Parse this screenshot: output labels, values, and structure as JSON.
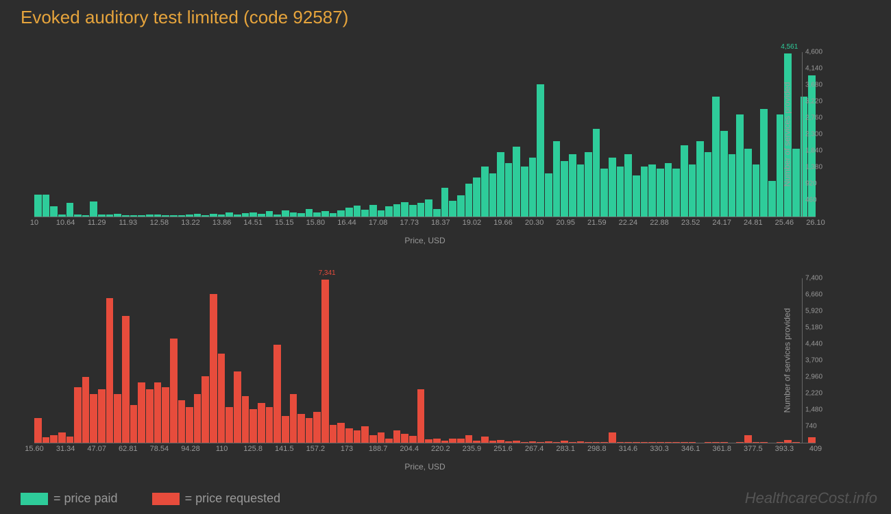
{
  "title": "Evoked auditory test limited (code 92587)",
  "watermark": "HealthcareCost.info",
  "chart1": {
    "type": "bar",
    "color": "#2ecc9a",
    "peak_label": "4,561",
    "peak_color": "#2ecc9a",
    "x_label": "Price, USD",
    "y_label": "Number of services provided",
    "x_ticks": [
      "10",
      "10.64",
      "11.29",
      "11.93",
      "12.58",
      "13.22",
      "13.86",
      "14.51",
      "15.15",
      "15.80",
      "16.44",
      "17.08",
      "17.73",
      "18.37",
      "19.02",
      "19.66",
      "20.30",
      "20.95",
      "21.59",
      "22.24",
      "22.88",
      "23.52",
      "24.17",
      "24.81",
      "25.46",
      "26.10"
    ],
    "y_ticks": [
      "460",
      "920",
      "1,380",
      "1,840",
      "2,300",
      "2,760",
      "3,220",
      "3,680",
      "4,140",
      "4,600"
    ],
    "y_max": 4600,
    "values": [
      620,
      620,
      280,
      50,
      380,
      60,
      40,
      420,
      50,
      50,
      70,
      30,
      40,
      30,
      50,
      60,
      30,
      40,
      30,
      60,
      70,
      40,
      80,
      50,
      120,
      60,
      100,
      120,
      80,
      150,
      60,
      180,
      120,
      90,
      220,
      120,
      150,
      100,
      180,
      250,
      300,
      200,
      320,
      180,
      280,
      340,
      400,
      320,
      380,
      480,
      220,
      800,
      450,
      600,
      920,
      1100,
      1400,
      1200,
      1800,
      1500,
      1950,
      1400,
      1650,
      3700,
      1200,
      2100,
      1550,
      1750,
      1450,
      1800,
      2450,
      1350,
      1650,
      1400,
      1750,
      1150,
      1400,
      1450,
      1350,
      1500,
      1350,
      2000,
      1450,
      2100,
      1800,
      3350,
      2400,
      1750,
      2850,
      1900,
      1450,
      3000,
      1000,
      2850,
      4561,
      1900,
      3350,
      3950
    ]
  },
  "chart2": {
    "type": "bar",
    "color": "#e74c3c",
    "peak_label": "7,341",
    "peak_color": "#e74c3c",
    "x_label": "Price, USD",
    "y_label": "Number of services provided",
    "x_ticks": [
      "15.60",
      "31.34",
      "47.07",
      "62.81",
      "78.54",
      "94.28",
      "110",
      "125.8",
      "141.5",
      "157.2",
      "173",
      "188.7",
      "204.4",
      "220.2",
      "235.9",
      "251.6",
      "267.4",
      "283.1",
      "298.8",
      "314.6",
      "330.3",
      "346.1",
      "361.8",
      "377.5",
      "393.3",
      "409"
    ],
    "y_ticks": [
      "740",
      "1,480",
      "2,220",
      "2,960",
      "3,700",
      "4,440",
      "5,180",
      "5,920",
      "6,660",
      "7,400"
    ],
    "y_max": 7400,
    "values": [
      1100,
      250,
      350,
      450,
      280,
      2500,
      2950,
      2200,
      2400,
      6500,
      2200,
      5700,
      1700,
      2700,
      2400,
      2700,
      2500,
      4700,
      1900,
      1600,
      2200,
      3000,
      6700,
      4000,
      1600,
      3200,
      2100,
      1500,
      1800,
      1600,
      4400,
      1200,
      2200,
      1300,
      1100,
      1400,
      7341,
      800,
      900,
      650,
      550,
      750,
      350,
      450,
      200,
      550,
      400,
      300,
      2400,
      150,
      200,
      100,
      200,
      180,
      350,
      100,
      280,
      80,
      120,
      60,
      90,
      40,
      50,
      30,
      60,
      40,
      80,
      30,
      50,
      20,
      30,
      40,
      450,
      30,
      20,
      40,
      30,
      20,
      30,
      20,
      25,
      20,
      30,
      15,
      20,
      25,
      20,
      15,
      20,
      350,
      20,
      30,
      15,
      20,
      120,
      20,
      15,
      250
    ]
  },
  "legend": {
    "paid": {
      "label": "= price paid",
      "color": "#2ecc9a"
    },
    "requested": {
      "label": "= price requested",
      "color": "#e74c3c"
    }
  },
  "styling": {
    "background": "#2d2d2d",
    "title_color": "#e6a43c",
    "axis_color": "#666666",
    "tick_color": "#999999",
    "watermark_color": "#555555"
  }
}
